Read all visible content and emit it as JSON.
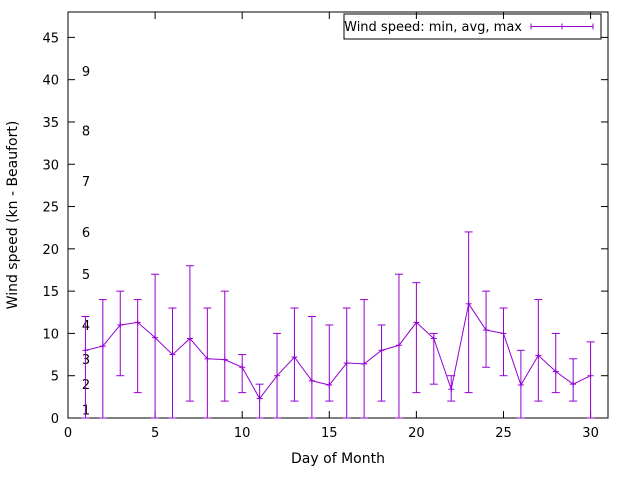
{
  "chart": {
    "legend_label": "Wind speed: min, avg, max",
    "xlabel": "Day of Month",
    "ylabel": "Wind speed (kn - Beaufort)"
  },
  "chart_data": {
    "type": "line",
    "style": "yerrorlines (min, avg, max per day)",
    "title": "",
    "xlabel": "Day of Month",
    "ylabel": "Wind speed (kn - Beaufort)",
    "legend": {
      "label": "Wind speed: min, avg, max",
      "position": "top-right",
      "boxed": true
    },
    "series_color": "#9400D3",
    "axis_color": "#000000",
    "grid": false,
    "xlim": [
      0,
      31
    ],
    "ylim": [
      0,
      48
    ],
    "x_ticks": [
      0,
      5,
      10,
      15,
      20,
      25,
      30
    ],
    "y_ticks": [
      0,
      5,
      10,
      15,
      20,
      25,
      30,
      35,
      40,
      45
    ],
    "beaufort_ticks": [
      {
        "label": "1",
        "kn": 1
      },
      {
        "label": "2",
        "kn": 4
      },
      {
        "label": "3",
        "kn": 7
      },
      {
        "label": "4",
        "kn": 11
      },
      {
        "label": "5",
        "kn": 17
      },
      {
        "label": "6",
        "kn": 22
      },
      {
        "label": "7",
        "kn": 28
      },
      {
        "label": "8",
        "kn": 34
      },
      {
        "label": "9",
        "kn": 41
      }
    ],
    "x": [
      1,
      2,
      3,
      4,
      5,
      6,
      7,
      8,
      9,
      10,
      11,
      12,
      13,
      14,
      15,
      16,
      17,
      18,
      19,
      20,
      21,
      22,
      23,
      24,
      25,
      26,
      27,
      28,
      29,
      30
    ],
    "avg": [
      8,
      8.5,
      11,
      11.3,
      9.5,
      7.5,
      9.4,
      7,
      6.9,
      6,
      2.3,
      5,
      7.2,
      4.4,
      3.9,
      6.5,
      6.4,
      8,
      8.6,
      11.3,
      9.4,
      3.4,
      13.5,
      10.4,
      10,
      3.9,
      7.4,
      5.5,
      4,
      5
    ],
    "min": [
      0,
      0,
      5,
      3,
      0,
      0,
      2,
      0,
      2,
      3,
      0,
      0,
      2,
      0,
      2,
      0,
      0,
      2,
      0,
      3,
      4,
      2,
      3,
      6,
      5,
      0,
      2,
      3,
      2,
      0
    ],
    "max": [
      12,
      14,
      15,
      14,
      17,
      13,
      18,
      13,
      15,
      7.5,
      4,
      10,
      13,
      12,
      11,
      13,
      14,
      11,
      17,
      16,
      10,
      5,
      22,
      15,
      13,
      8,
      14,
      10,
      7,
      9
    ]
  }
}
